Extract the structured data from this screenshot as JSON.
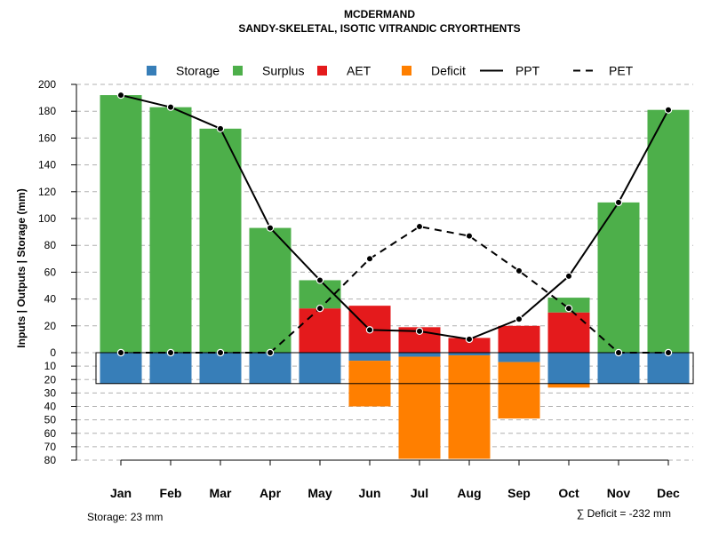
{
  "chart_data": {
    "type": "bar",
    "title": "MCDERMAND",
    "subtitle": "SANDY-SKELETAL, ISOTIC VITRANDIC CRYORTHENTS",
    "ylabel": "Inputs | Outputs | Storage    (mm)",
    "categories": [
      "Jan",
      "Feb",
      "Mar",
      "Apr",
      "May",
      "Jun",
      "Jul",
      "Aug",
      "Sep",
      "Oct",
      "Nov",
      "Dec"
    ],
    "ylim_upper": [
      0,
      200
    ],
    "ylim_lower": [
      0,
      80
    ],
    "upper_ticks": [
      "200",
      "180",
      "160",
      "140",
      "120",
      "100",
      "80",
      "60",
      "40",
      "20",
      "0"
    ],
    "lower_ticks": [
      "10",
      "20",
      "30",
      "40",
      "50",
      "60",
      "70",
      "80"
    ],
    "legend": [
      "Storage",
      "Surplus",
      "AET",
      "Deficit",
      "PPT",
      "PET"
    ],
    "colors": {
      "storage": "#377eb8",
      "surplus": "#4daf4a",
      "aet": "#e41a1c",
      "deficit": "#ff7f00"
    },
    "series": [
      {
        "name": "Storage",
        "values": [
          23,
          23,
          23,
          23,
          23,
          6,
          3,
          2,
          7,
          23,
          23,
          23
        ]
      },
      {
        "name": "Surplus",
        "values": [
          192,
          183,
          167,
          93,
          21,
          0,
          0,
          0,
          0,
          11,
          112,
          181
        ]
      },
      {
        "name": "AET",
        "values": [
          0,
          0,
          0,
          0,
          33,
          35,
          19,
          11,
          20,
          30,
          0,
          0
        ]
      },
      {
        "name": "Deficit",
        "values": [
          0,
          0,
          0,
          0,
          0,
          34,
          76,
          77,
          42,
          3,
          0,
          0
        ]
      },
      {
        "name": "PPT",
        "values": [
          192,
          183,
          167,
          93,
          54,
          17,
          16,
          10,
          25,
          57,
          112,
          181
        ]
      },
      {
        "name": "PET",
        "values": [
          0,
          0,
          0,
          0,
          33,
          70,
          94,
          87,
          61,
          33,
          0,
          0
        ]
      }
    ],
    "footer_storage": "Storage: 23 mm",
    "footer_deficit": "∑ Deficit = -232 mm"
  }
}
